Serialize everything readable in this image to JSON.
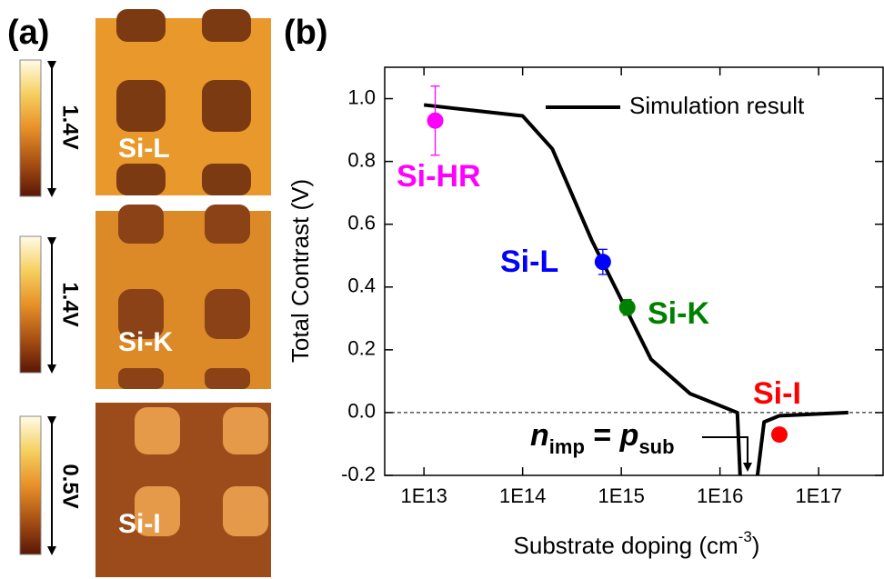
{
  "panel_a": {
    "label": "(a)",
    "images": [
      {
        "label": "Si-L",
        "scale": "1.4V"
      },
      {
        "label": "Si-K",
        "scale": "1.4V"
      },
      {
        "label": "Si-I",
        "scale": "0.5V"
      }
    ]
  },
  "chart_data": {
    "type": "line",
    "panel_label": "(b)",
    "x_label": {
      "text": "Substrate doping (cm",
      "superscript": "-3",
      "close": ")"
    },
    "y_label": "Total Contrast (V)",
    "log_x": true,
    "xlim": [
      4000000000000.0,
      4.5e+17
    ],
    "ylim": [
      -0.2,
      1.1
    ],
    "xticks": [
      {
        "value": 10000000000000.0,
        "label": "1E13"
      },
      {
        "value": 100000000000000.0,
        "label": "1E14"
      },
      {
        "value": 1000000000000000.0,
        "label": "1E15"
      },
      {
        "value": 1e+16,
        "label": "1E16"
      },
      {
        "value": 1e+17,
        "label": "1E17"
      }
    ],
    "yticks": [
      -0.2,
      {
        "value": 0,
        "label": "0.0"
      },
      0.2,
      0.4,
      0.6,
      0.8,
      {
        "value": 1,
        "label": "1.0"
      }
    ],
    "zero_line": true,
    "legend": "upper right",
    "series": [
      {
        "name": "Simulation result",
        "color": "#000000",
        "x": [
          10000000000000.0,
          100000000000000.0,
          200000000000000.0,
          500000000000000.0,
          1000000000000000.0,
          2000000000000000.0,
          5000000000000000.0,
          1.5e+16,
          1.6e+16,
          2e+16,
          2.4e+16,
          2.8e+16,
          4e+16,
          2e+17
        ],
        "values": [
          0.98,
          0.945,
          0.84,
          0.55,
          0.36,
          0.17,
          0.06,
          0.0,
          -0.2,
          null,
          -0.2,
          -0.03,
          -0.01,
          0.0
        ]
      }
    ],
    "samples": [
      {
        "name": "Si-HR",
        "color": "#ff00ff",
        "x": 13000000000000.0,
        "value": 0.93,
        "error": 0.11
      },
      {
        "name": "Si-L",
        "color": "#0000ff",
        "x": 650000000000000.0,
        "value": 0.48,
        "error": 0.04
      },
      {
        "name": "Si-K",
        "color": "#008000",
        "x": 1150000000000000.0,
        "value": 0.335,
        "error": 0.025
      },
      {
        "name": "Si-I",
        "color": "#ff0000",
        "x": 4e+16,
        "value": -0.07
      }
    ],
    "annotation": {
      "n": "n",
      "n_sub": "imp",
      "eq": " = ",
      "p": "p",
      "p_sub": "sub"
    }
  }
}
